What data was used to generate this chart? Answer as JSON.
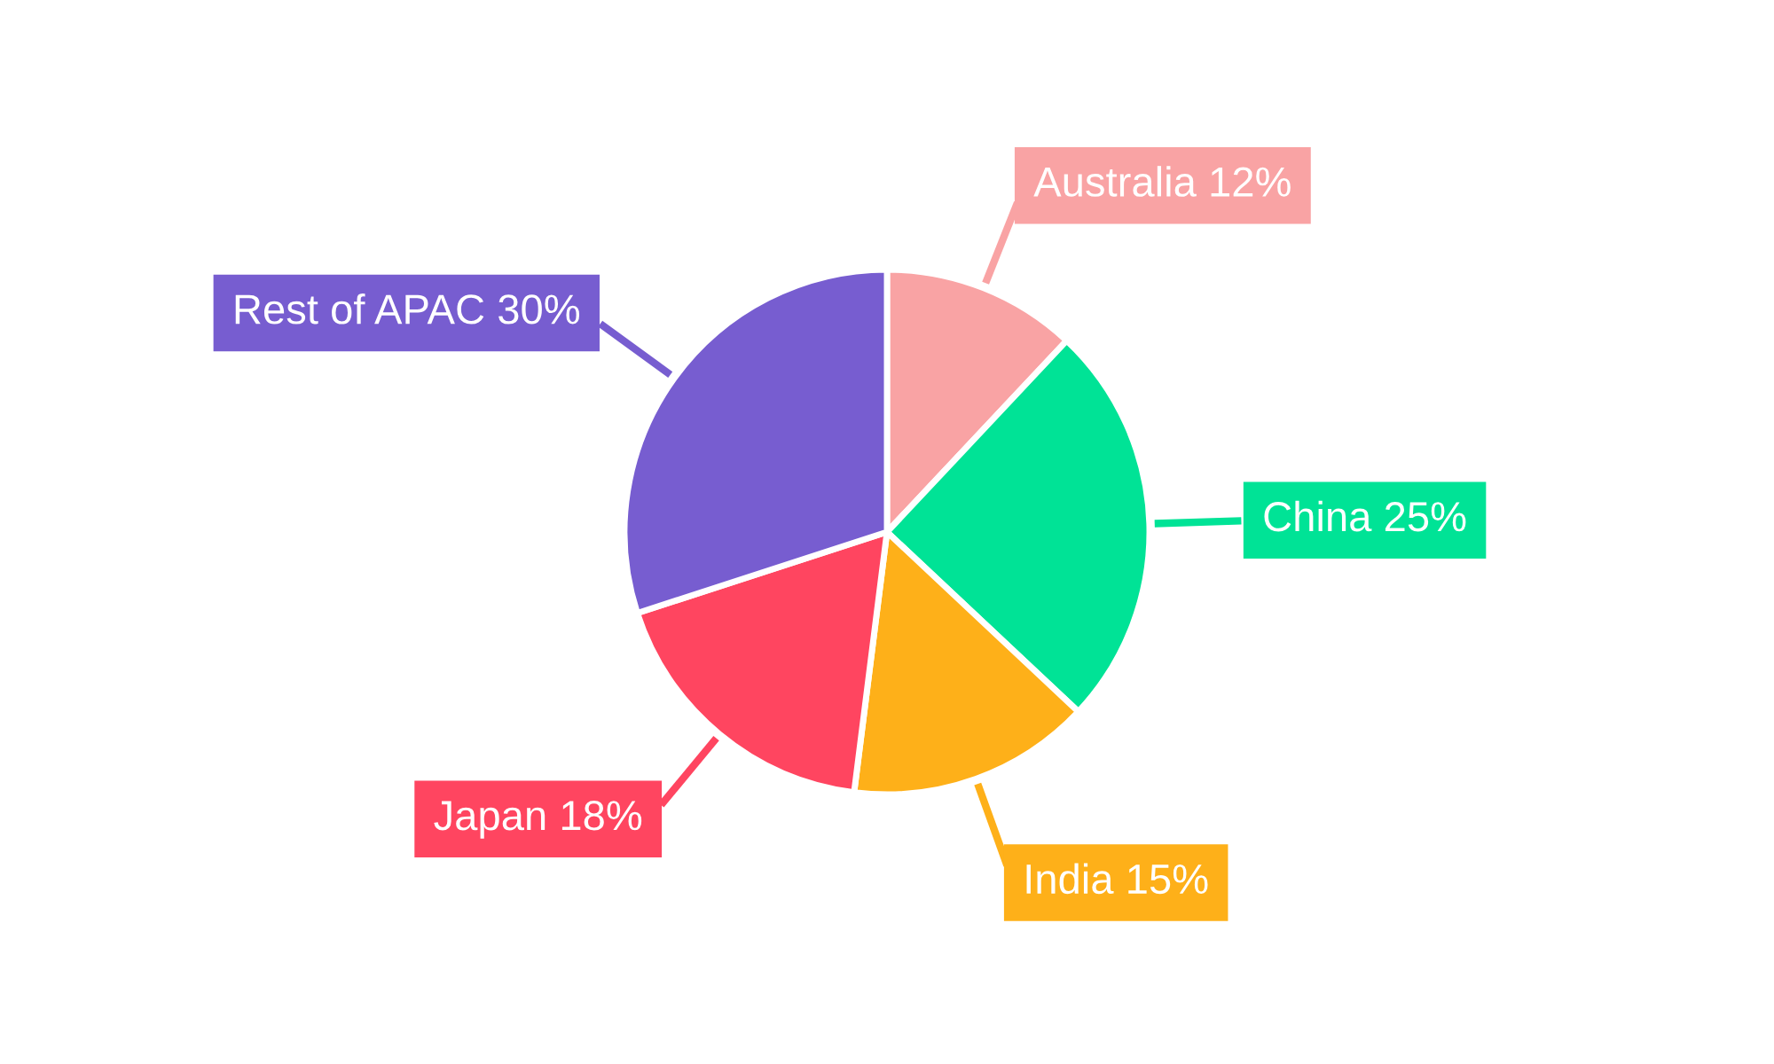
{
  "chart_data": {
    "type": "pie",
    "categories": [
      "Australia",
      "China",
      "India",
      "Japan",
      "Rest of APAC"
    ],
    "values": [
      12,
      25,
      15,
      18,
      30
    ],
    "value_labels": [
      "12%",
      "25%",
      "15%",
      "18%",
      "30%"
    ],
    "colors": [
      "#f9a3a4",
      "#00e396",
      "#feb019",
      "#ff4560",
      "#775dd0"
    ],
    "legend": false
  }
}
